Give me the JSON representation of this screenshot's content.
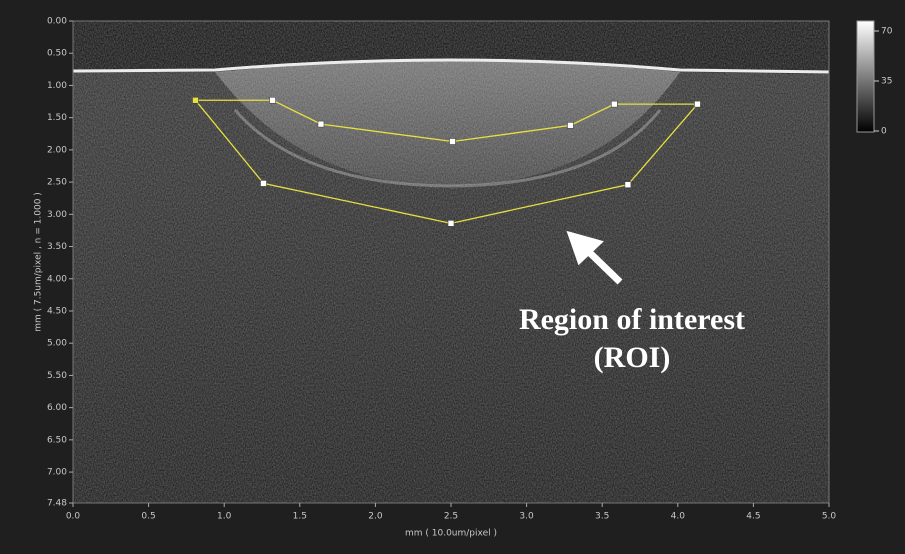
{
  "chart_data": {
    "type": "image-roi",
    "xlabel": "mm ( 10.0um/pixel )",
    "ylabel": "mm  ( 7.5um/pixel ,  n = 1.000 )",
    "xlim": [
      0,
      5
    ],
    "ylim": [
      7.48,
      0
    ],
    "xticks": [
      {
        "value": 0,
        "label": "0.0"
      },
      0.5,
      {
        "value": 1,
        "label": "1.0"
      },
      1.5,
      {
        "value": 2,
        "label": "2.0"
      },
      2.5,
      {
        "value": 3,
        "label": "3.0"
      },
      3.5,
      {
        "value": 4,
        "label": "4.0"
      },
      4.5,
      {
        "value": 5,
        "label": "5.0"
      }
    ],
    "yticks": [
      {
        "value": 0,
        "label": "0.00"
      },
      {
        "value": 0.5,
        "label": "0.50"
      },
      {
        "value": 1,
        "label": "1.00"
      },
      {
        "value": 1.5,
        "label": "1.50"
      },
      {
        "value": 2,
        "label": "2.00"
      },
      {
        "value": 2.5,
        "label": "2.50"
      },
      {
        "value": 3,
        "label": "3.00"
      },
      {
        "value": 3.5,
        "label": "3.50"
      },
      {
        "value": 4,
        "label": "4.00"
      },
      {
        "value": 4.5,
        "label": "4.50"
      },
      {
        "value": 5,
        "label": "5.00"
      },
      {
        "value": 5.5,
        "label": "5.50"
      },
      {
        "value": 6,
        "label": "6.00"
      },
      {
        "value": 6.5,
        "label": "6.50"
      },
      {
        "value": 7,
        "label": "7.00"
      },
      7.48
    ],
    "roi": {
      "color": "#e6e040",
      "x": [
        0.81,
        1.32,
        1.64,
        2.51,
        3.29,
        3.58,
        4.13,
        3.67,
        2.5,
        1.26
      ],
      "y": [
        1.23,
        1.23,
        1.6,
        1.87,
        1.62,
        1.29,
        1.29,
        2.54,
        3.14,
        2.52
      ]
    },
    "colorbar": {
      "lim": [
        0,
        70
      ],
      "ticks": [
        70,
        35,
        0
      ]
    },
    "annotation": [
      "Region of interest",
      "(ROI)"
    ]
  }
}
